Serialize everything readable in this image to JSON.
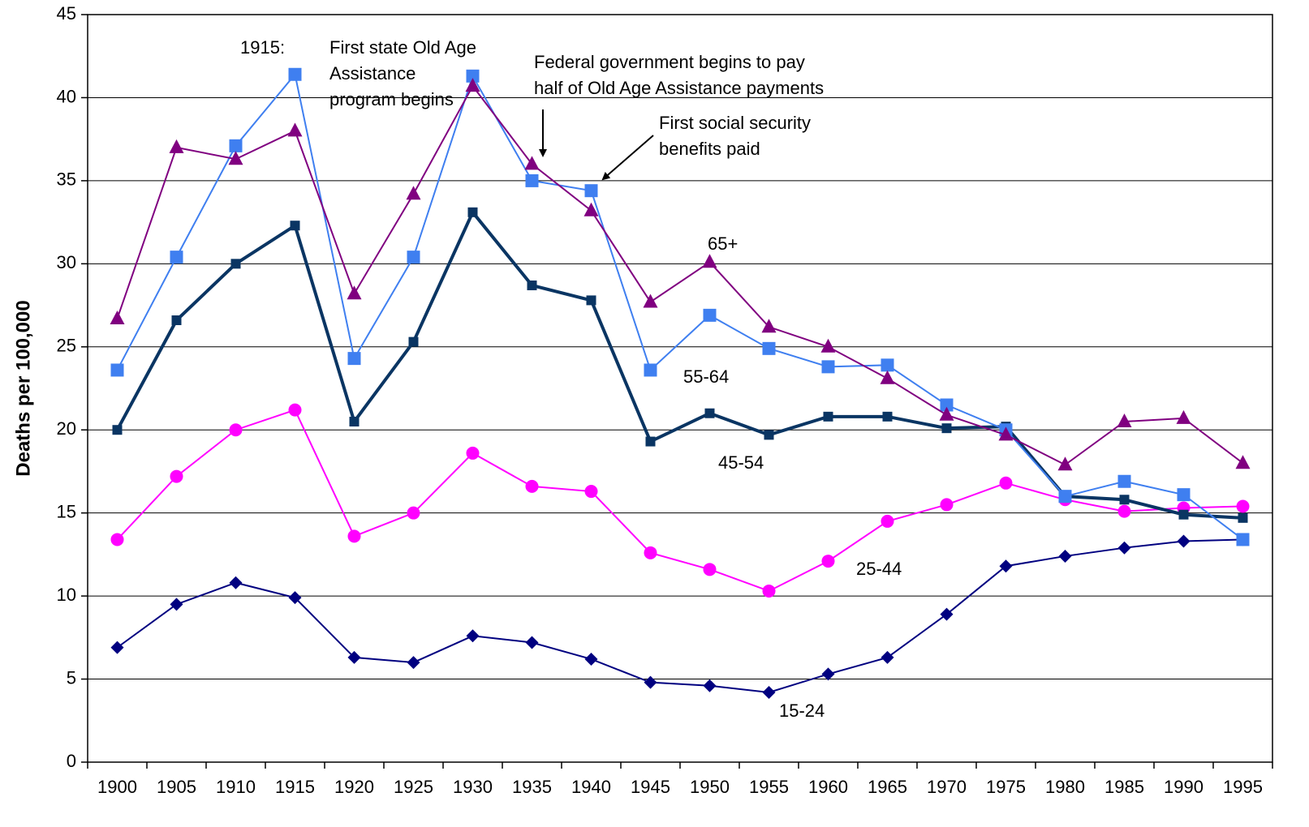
{
  "chart_data": {
    "type": "line",
    "y_label": "Deaths per 100,000",
    "categories": [
      "1900",
      "1905",
      "1910",
      "1915",
      "1920",
      "1925",
      "1930",
      "1935",
      "1940",
      "1945",
      "1950",
      "1955",
      "1960",
      "1965",
      "1970",
      "1975",
      "1980",
      "1985",
      "1990",
      "1995"
    ],
    "ylim": [
      0,
      45
    ],
    "yticks": [
      0,
      5,
      10,
      15,
      20,
      25,
      30,
      35,
      40,
      45
    ],
    "grid": true,
    "series": [
      {
        "name": "65+",
        "color": "#800080",
        "marker": "triangle",
        "values": [
          26.7,
          37.0,
          36.3,
          38.0,
          28.2,
          34.2,
          40.7,
          36.0,
          33.2,
          27.7,
          30.1,
          26.2,
          25.0,
          23.1,
          20.9,
          19.7,
          17.9,
          20.5,
          20.7,
          18.0
        ]
      },
      {
        "name": "55-64",
        "color": "#3f7ff0",
        "marker": "square",
        "values": [
          23.6,
          30.4,
          37.1,
          41.4,
          24.3,
          30.4,
          41.3,
          35.0,
          34.4,
          23.6,
          26.9,
          24.9,
          23.8,
          23.9,
          21.5,
          20.0,
          16.0,
          16.9,
          16.1,
          13.4
        ]
      },
      {
        "name": "45-54",
        "color": "#0a3563",
        "marker": "small-square",
        "values": [
          20.0,
          26.6,
          30.0,
          32.3,
          20.5,
          25.3,
          33.1,
          28.7,
          27.8,
          19.3,
          21.0,
          19.7,
          20.8,
          20.8,
          20.1,
          20.2,
          16.0,
          15.8,
          14.9,
          14.7
        ]
      },
      {
        "name": "25-44",
        "color": "#ff00ff",
        "marker": "circle",
        "values": [
          13.4,
          17.2,
          20.0,
          21.2,
          13.6,
          15.0,
          18.6,
          16.6,
          16.3,
          12.6,
          11.6,
          10.3,
          12.1,
          14.5,
          15.5,
          16.8,
          15.8,
          15.1,
          15.3,
          15.4
        ]
      },
      {
        "name": "15-24",
        "color": "#000080",
        "marker": "diamond",
        "values": [
          6.9,
          9.5,
          10.8,
          9.9,
          6.3,
          6.0,
          7.6,
          7.2,
          6.2,
          4.8,
          4.6,
          4.2,
          5.3,
          6.3,
          8.9,
          11.8,
          12.4,
          12.9,
          13.3,
          13.4
        ]
      }
    ],
    "annotations": [
      {
        "lines": [
          "1915:",
          "First state Old Age",
          "Assistance",
          "program begins"
        ]
      },
      {
        "lines": [
          "Federal government begins to pay",
          "half of Old Age Assistance payments"
        ]
      },
      {
        "lines": [
          "First social security",
          "benefits paid"
        ]
      }
    ]
  }
}
